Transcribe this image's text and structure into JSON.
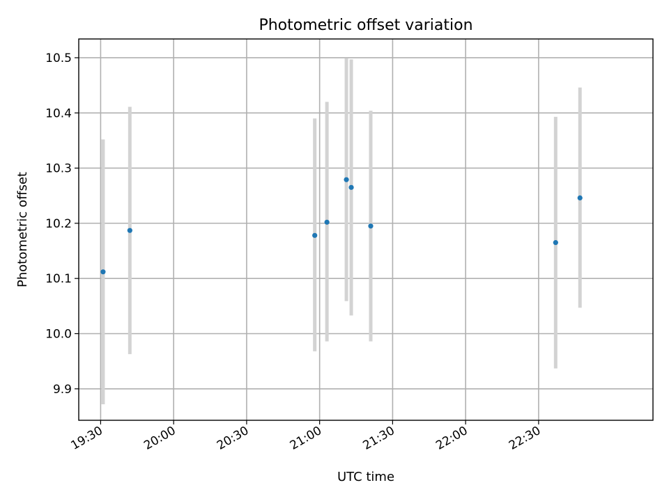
{
  "chart_data": {
    "type": "scatter",
    "title": "Photometric offset variation",
    "xlabel": "UTC time",
    "ylabel": "Photometric offset",
    "x_axis": "time",
    "xlim": [
      "19:21",
      "23:17"
    ],
    "ylim": [
      9.843,
      10.534
    ],
    "grid": true,
    "xticks": [
      "19:30",
      "20:00",
      "20:30",
      "21:00",
      "21:30",
      "22:00",
      "22:30"
    ],
    "yticks": [
      "9.9",
      "10.0",
      "10.1",
      "10.2",
      "10.3",
      "10.4",
      "10.5"
    ],
    "colors": {
      "point": "#1f77b4",
      "errorbar": "#d3d3d3"
    },
    "points": [
      {
        "x": "19:31",
        "y": 10.112,
        "ylow": 9.872,
        "yhigh": 10.352
      },
      {
        "x": "19:42",
        "y": 10.187,
        "ylow": 9.963,
        "yhigh": 10.411
      },
      {
        "x": "20:58",
        "y": 10.178,
        "ylow": 9.968,
        "yhigh": 10.39
      },
      {
        "x": "21:03",
        "y": 10.202,
        "ylow": 9.986,
        "yhigh": 10.42
      },
      {
        "x": "21:11",
        "y": 10.279,
        "ylow": 10.059,
        "yhigh": 10.499
      },
      {
        "x": "21:13",
        "y": 10.265,
        "ylow": 10.033,
        "yhigh": 10.497
      },
      {
        "x": "21:21",
        "y": 10.195,
        "ylow": 9.986,
        "yhigh": 10.404
      },
      {
        "x": "22:37",
        "y": 10.165,
        "ylow": 9.937,
        "yhigh": 10.393
      },
      {
        "x": "22:47",
        "y": 10.246,
        "ylow": 10.047,
        "yhigh": 10.446
      }
    ]
  }
}
